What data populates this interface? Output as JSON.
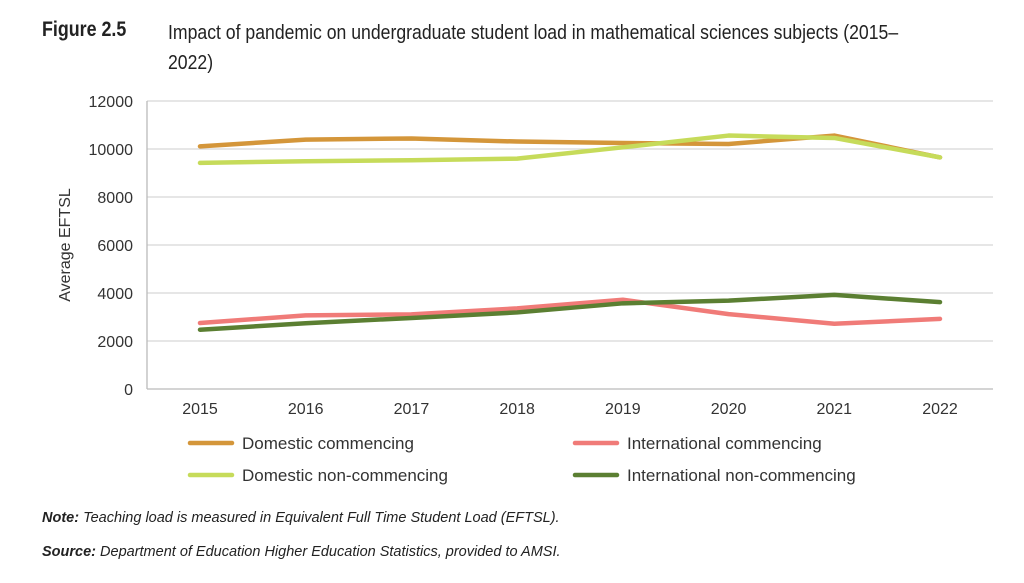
{
  "figure_label": "Figure 2.5",
  "title": "Impact of pandemic on undergraduate student load in mathematical sciences subjects (2015–2022)",
  "note_label": "Note:",
  "note_text": " Teaching load is measured in Equivalent Full Time Student Load (EFTSL).",
  "source_label": "Source:",
  "source_text": " Department of Education Higher Education Statistics, provided to AMSI.",
  "chart_data": {
    "type": "line",
    "title": "",
    "xlabel": "",
    "ylabel": "Average EFTSL",
    "ylim": [
      0,
      12000
    ],
    "yticks": [
      0,
      2000,
      4000,
      6000,
      8000,
      10000,
      12000
    ],
    "grid": true,
    "legend_position": "bottom",
    "categories": [
      "2015",
      "2016",
      "2017",
      "2018",
      "2019",
      "2020",
      "2021",
      "2022"
    ],
    "series": [
      {
        "name": "Domestic commencing",
        "color": "#D4963A",
        "values": [
          10110,
          10390,
          10440,
          10310,
          10250,
          10210,
          10560,
          9650
        ]
      },
      {
        "name": "International commencing",
        "color": "#F07B78",
        "values": [
          2750,
          3070,
          3110,
          3360,
          3720,
          3120,
          2720,
          2920
        ]
      },
      {
        "name": "Domestic non-commencing",
        "color": "#C6DB5A",
        "values": [
          9420,
          9490,
          9530,
          9600,
          10070,
          10560,
          10460,
          9650
        ]
      },
      {
        "name": "International non-commencing",
        "color": "#5B7F32",
        "values": [
          2470,
          2740,
          2960,
          3190,
          3570,
          3680,
          3920,
          3620
        ]
      }
    ]
  }
}
